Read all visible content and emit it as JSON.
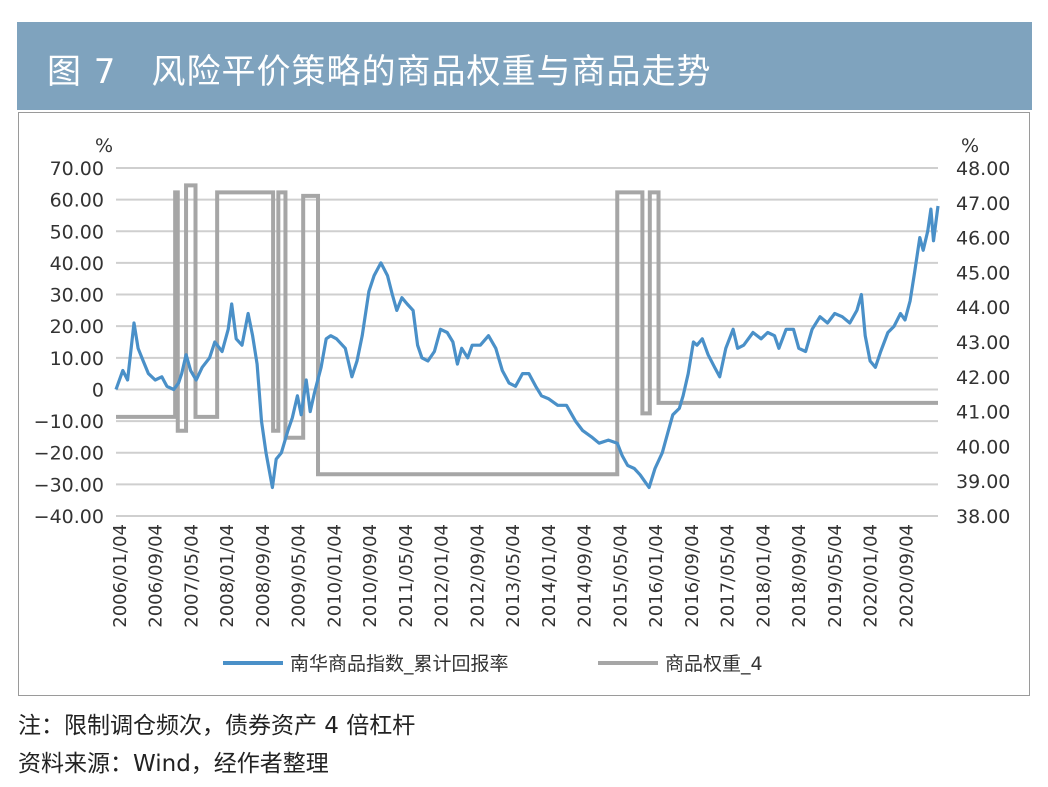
{
  "header": {
    "title": "图 7　风险平价策略的商品权重与商品走势"
  },
  "notes": {
    "note": "注：限制调仓频次，债券资产 4 倍杠杆",
    "source": "资料来源：Wind，经作者整理"
  },
  "colors": {
    "header_bg": "#7fa3be",
    "series_index": "#4a90c8",
    "series_weight": "#a6a6a6",
    "grid": "#cfcfcf"
  },
  "chart_data": {
    "type": "line",
    "title": "",
    "y_left": {
      "unit_label": "%",
      "range": [
        -40,
        70
      ],
      "ticks": [
        70,
        60,
        50,
        40,
        30,
        20,
        10,
        0,
        -10,
        -20,
        -30,
        -40
      ],
      "tick_labels": [
        "70.00",
        "60.00",
        "50.00",
        "40.00",
        "30.00",
        "20.00",
        "10.00",
        "0",
        "−10.00",
        "−20.00",
        "−30.00",
        "−40.00"
      ]
    },
    "y_right": {
      "unit_label": "%",
      "range": [
        38,
        48
      ],
      "ticks": [
        48,
        47,
        46,
        45,
        44,
        43,
        42,
        41,
        40,
        39,
        38
      ],
      "tick_labels": [
        "48.00",
        "47.00",
        "46.00",
        "45.00",
        "44.00",
        "43.00",
        "42.00",
        "41.00",
        "40.00",
        "39.00",
        "38.00"
      ]
    },
    "x_axis": {
      "start": "2006-01-04",
      "end": "2021-06-30",
      "tick_labels": [
        "2006/01/04",
        "2006/09/04",
        "2007/05/04",
        "2008/01/04",
        "2008/09/04",
        "2009/05/04",
        "2010/01/04",
        "2010/09/04",
        "2011/05/04",
        "2012/01/04",
        "2012/09/04",
        "2013/05/04",
        "2014/01/04",
        "2014/09/04",
        "2015/05/04",
        "2016/01/04",
        "2016/09/04",
        "2017/05/04",
        "2018/01/04",
        "2018/09/04",
        "2019/05/04",
        "2020/01/04",
        "2020/09/04"
      ]
    },
    "grid": true,
    "legend_position": "bottom",
    "series": [
      {
        "name": "南华商品指数_累计回报率",
        "axis": "left",
        "color": "#4a90c8",
        "points": [
          [
            "2006-01-04",
            0
          ],
          [
            "2006-02-20",
            6
          ],
          [
            "2006-03-25",
            3
          ],
          [
            "2006-05-08",
            21
          ],
          [
            "2006-06-05",
            13
          ],
          [
            "2006-07-10",
            9
          ],
          [
            "2006-08-15",
            5
          ],
          [
            "2006-10-01",
            3
          ],
          [
            "2006-11-15",
            4
          ],
          [
            "2006-12-20",
            1
          ],
          [
            "2007-02-05",
            0
          ],
          [
            "2007-03-10",
            2
          ],
          [
            "2007-04-01",
            5
          ],
          [
            "2007-05-01",
            11
          ],
          [
            "2007-06-01",
            6
          ],
          [
            "2007-07-10",
            3
          ],
          [
            "2007-08-20",
            7
          ],
          [
            "2007-10-10",
            10
          ],
          [
            "2007-11-15",
            15
          ],
          [
            "2008-01-04",
            12
          ],
          [
            "2008-02-15",
            19
          ],
          [
            "2008-03-10",
            27
          ],
          [
            "2008-04-10",
            16
          ],
          [
            "2008-05-20",
            14
          ],
          [
            "2008-07-01",
            24
          ],
          [
            "2008-08-01",
            17
          ],
          [
            "2008-09-01",
            8
          ],
          [
            "2008-10-01",
            -10
          ],
          [
            "2008-11-01",
            -20
          ],
          [
            "2008-12-15",
            -31
          ],
          [
            "2009-01-10",
            -22
          ],
          [
            "2009-02-15",
            -20
          ],
          [
            "2009-04-01",
            -13
          ],
          [
            "2009-05-01",
            -9
          ],
          [
            "2009-06-05",
            -2
          ],
          [
            "2009-07-01",
            -8
          ],
          [
            "2009-08-05",
            3
          ],
          [
            "2009-09-01",
            -7
          ],
          [
            "2009-10-01",
            -1
          ],
          [
            "2009-11-15",
            7
          ],
          [
            "2009-12-20",
            16
          ],
          [
            "2010-01-20",
            17
          ],
          [
            "2010-03-01",
            16
          ],
          [
            "2010-05-01",
            13
          ],
          [
            "2010-06-15",
            4
          ],
          [
            "2010-07-20",
            9
          ],
          [
            "2010-08-25",
            17
          ],
          [
            "2010-10-10",
            31
          ],
          [
            "2010-11-15",
            36
          ],
          [
            "2011-01-01",
            40
          ],
          [
            "2011-02-15",
            36
          ],
          [
            "2011-03-20",
            30
          ],
          [
            "2011-04-20",
            25
          ],
          [
            "2011-05-25",
            29
          ],
          [
            "2011-07-01",
            27
          ],
          [
            "2011-08-10",
            25
          ],
          [
            "2011-09-10",
            14
          ],
          [
            "2011-10-10",
            10
          ],
          [
            "2011-11-20",
            9
          ],
          [
            "2012-01-04",
            12
          ],
          [
            "2012-02-15",
            19
          ],
          [
            "2012-04-01",
            18
          ],
          [
            "2012-05-10",
            15
          ],
          [
            "2012-06-10",
            8
          ],
          [
            "2012-07-10",
            13
          ],
          [
            "2012-08-20",
            10
          ],
          [
            "2012-09-20",
            14
          ],
          [
            "2012-11-15",
            14
          ],
          [
            "2013-01-10",
            17
          ],
          [
            "2013-03-01",
            13
          ],
          [
            "2013-04-15",
            6
          ],
          [
            "2013-06-01",
            2
          ],
          [
            "2013-07-15",
            1
          ],
          [
            "2013-09-01",
            5
          ],
          [
            "2013-10-15",
            5
          ],
          [
            "2013-12-01",
            1
          ],
          [
            "2014-01-10",
            -2
          ],
          [
            "2014-03-01",
            -3
          ],
          [
            "2014-05-01",
            -5
          ],
          [
            "2014-07-01",
            -5
          ],
          [
            "2014-09-01",
            -10
          ],
          [
            "2014-10-20",
            -13
          ],
          [
            "2014-12-20",
            -15
          ],
          [
            "2015-02-10",
            -17
          ],
          [
            "2015-04-15",
            -16
          ],
          [
            "2015-06-15",
            -17
          ],
          [
            "2015-07-20",
            -21
          ],
          [
            "2015-08-25",
            -24
          ],
          [
            "2015-10-10",
            -25
          ],
          [
            "2015-11-20",
            -27
          ],
          [
            "2015-12-20",
            -29
          ],
          [
            "2016-01-20",
            -31
          ],
          [
            "2016-03-01",
            -25
          ],
          [
            "2016-04-20",
            -20
          ],
          [
            "2016-06-01",
            -13
          ],
          [
            "2016-07-01",
            -8
          ],
          [
            "2016-08-15",
            -6
          ],
          [
            "2016-09-10",
            -2
          ],
          [
            "2016-10-15",
            5
          ],
          [
            "2016-11-20",
            15
          ],
          [
            "2016-12-15",
            14
          ],
          [
            "2017-01-20",
            16
          ],
          [
            "2017-03-01",
            11
          ],
          [
            "2017-04-15",
            7
          ],
          [
            "2017-05-20",
            4
          ],
          [
            "2017-07-01",
            13
          ],
          [
            "2017-08-20",
            19
          ],
          [
            "2017-09-20",
            13
          ],
          [
            "2017-11-01",
            14
          ],
          [
            "2018-01-04",
            18
          ],
          [
            "2018-03-01",
            16
          ],
          [
            "2018-04-15",
            18
          ],
          [
            "2018-06-01",
            17
          ],
          [
            "2018-07-01",
            13
          ],
          [
            "2018-08-20",
            19
          ],
          [
            "2018-10-10",
            19
          ],
          [
            "2018-11-15",
            13
          ],
          [
            "2019-01-01",
            12
          ],
          [
            "2019-02-15",
            19
          ],
          [
            "2019-04-10",
            23
          ],
          [
            "2019-06-01",
            21
          ],
          [
            "2019-07-20",
            24
          ],
          [
            "2019-09-10",
            23
          ],
          [
            "2019-11-01",
            21
          ],
          [
            "2019-12-20",
            25
          ],
          [
            "2020-01-20",
            30
          ],
          [
            "2020-02-15",
            17
          ],
          [
            "2020-03-20",
            9
          ],
          [
            "2020-04-25",
            7
          ],
          [
            "2020-06-01",
            12
          ],
          [
            "2020-07-20",
            18
          ],
          [
            "2020-09-01",
            20
          ],
          [
            "2020-10-15",
            24
          ],
          [
            "2020-11-15",
            22
          ],
          [
            "2020-12-20",
            28
          ],
          [
            "2021-01-20",
            37
          ],
          [
            "2021-02-25",
            48
          ],
          [
            "2021-03-20",
            44
          ],
          [
            "2021-04-20",
            50
          ],
          [
            "2021-05-12",
            57
          ],
          [
            "2021-05-30",
            47
          ],
          [
            "2021-06-30",
            58
          ]
        ]
      },
      {
        "name": "商品权重_4",
        "axis": "right",
        "color": "#a6a6a6",
        "step_points": [
          [
            "2006-01-04",
            40.85
          ],
          [
            "2007-02-15",
            47.3
          ],
          [
            "2007-03-05",
            40.45
          ],
          [
            "2007-05-01",
            47.5
          ],
          [
            "2007-07-05",
            40.85
          ],
          [
            "2007-12-01",
            47.3
          ],
          [
            "2008-12-20",
            40.45
          ],
          [
            "2009-01-25",
            47.3
          ],
          [
            "2009-03-15",
            40.25
          ],
          [
            "2009-07-15",
            47.2
          ],
          [
            "2009-10-25",
            39.2
          ],
          [
            "2015-06-15",
            47.3
          ],
          [
            "2015-12-05",
            40.95
          ],
          [
            "2016-01-25",
            47.3
          ],
          [
            "2016-03-25",
            41.25
          ],
          [
            "2021-06-30",
            41.25
          ]
        ]
      }
    ]
  }
}
